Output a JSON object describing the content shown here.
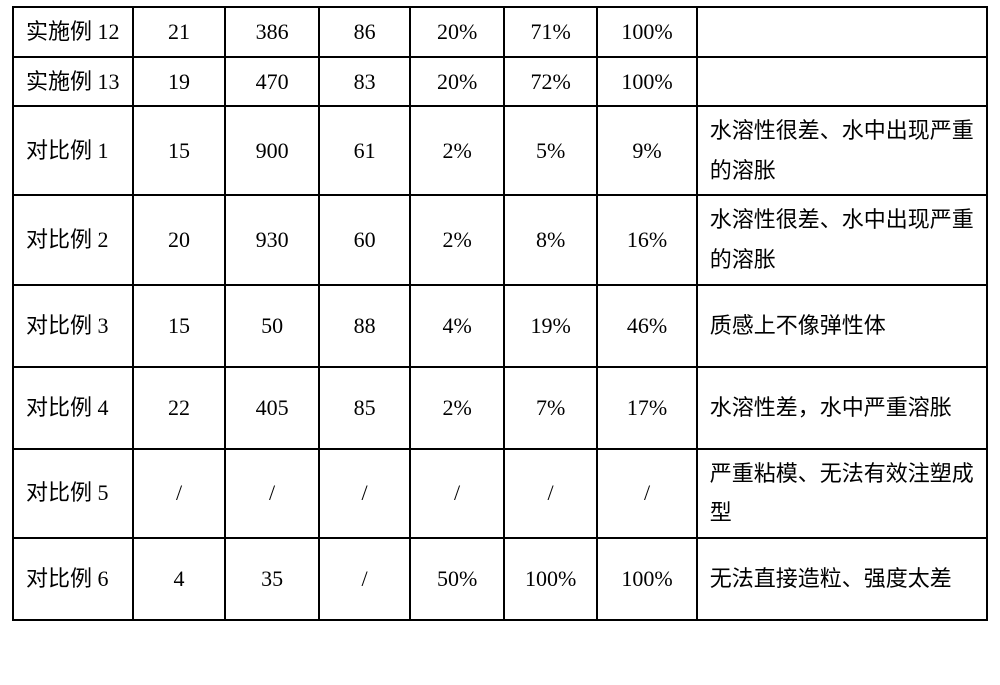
{
  "table": {
    "type": "table",
    "background_color": "#ffffff",
    "border_color": "#000000",
    "border_width": 2,
    "font_size_pt": 16,
    "text_color": "#000000",
    "column_widths_pct": [
      12.3,
      9.5,
      9.6,
      9.4,
      9.6,
      9.6,
      10.2,
      29.8
    ],
    "column_alignment": [
      "left",
      "center",
      "center",
      "center",
      "center",
      "center",
      "center",
      "left"
    ],
    "rows": [
      {
        "tall": false,
        "cells": [
          "实施例 12",
          "21",
          "386",
          "86",
          "20%",
          "71%",
          "100%",
          ""
        ]
      },
      {
        "tall": false,
        "cells": [
          "实施例 13",
          "19",
          "470",
          "83",
          "20%",
          "72%",
          "100%",
          ""
        ]
      },
      {
        "tall": true,
        "cells": [
          "对比例 1",
          "15",
          "900",
          "61",
          "2%",
          "5%",
          "9%",
          "水溶性很差、水中出现严重的溶胀"
        ]
      },
      {
        "tall": true,
        "cells": [
          "对比例 2",
          "20",
          "930",
          "60",
          "2%",
          "8%",
          "16%",
          "水溶性很差、水中出现严重的溶胀"
        ]
      },
      {
        "tall": true,
        "cells": [
          "对比例 3",
          "15",
          "50",
          "88",
          "4%",
          "19%",
          "46%",
          "质感上不像弹性体"
        ]
      },
      {
        "tall": true,
        "cells": [
          "对比例 4",
          "22",
          "405",
          "85",
          "2%",
          "7%",
          "17%",
          "水溶性差，水中严重溶胀"
        ]
      },
      {
        "tall": true,
        "cells": [
          "对比例 5",
          "/",
          "/",
          "/",
          "/",
          "/",
          "/",
          "严重粘模、无法有效注塑成型"
        ]
      },
      {
        "tall": true,
        "cells": [
          "对比例 6",
          "4",
          "35",
          "/",
          "50%",
          "100%",
          "100%",
          "无法直接造粒、强度太差"
        ]
      }
    ]
  }
}
